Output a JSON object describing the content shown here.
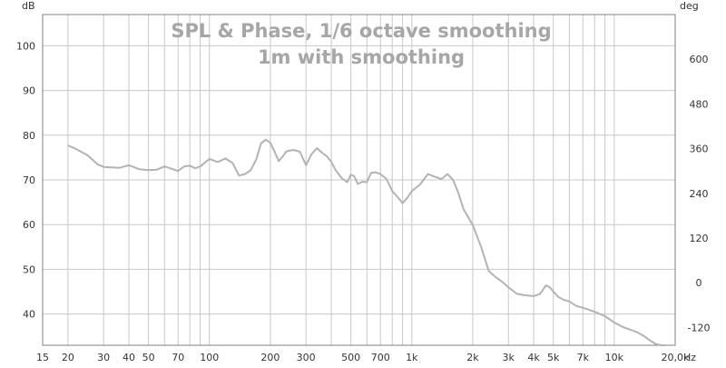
{
  "chart_data": {
    "type": "line",
    "title_line1": "SPL & Phase, 1/6 octave smoothing",
    "title_line2": "1m with smoothing",
    "left_axis_unit": "dB",
    "right_axis_unit": "deg",
    "x_axis_unit": "Hz",
    "x_scale": "log",
    "xlim": [
      15,
      20000
    ],
    "ylim_left": [
      33,
      107
    ],
    "ylim_right": [
      -168,
      720
    ],
    "grid": true,
    "x_ticks": [
      {
        "value": 15,
        "label": "15"
      },
      {
        "value": 20,
        "label": "20"
      },
      {
        "value": 30,
        "label": "30"
      },
      {
        "value": 40,
        "label": "40"
      },
      {
        "value": 50,
        "label": "50"
      },
      {
        "value": 70,
        "label": "70"
      },
      {
        "value": 100,
        "label": "100"
      },
      {
        "value": 200,
        "label": "200"
      },
      {
        "value": 300,
        "label": "300"
      },
      {
        "value": 500,
        "label": "500"
      },
      {
        "value": 700,
        "label": "700"
      },
      {
        "value": 1000,
        "label": "1k"
      },
      {
        "value": 2000,
        "label": "2k"
      },
      {
        "value": 3000,
        "label": "3k"
      },
      {
        "value": 4000,
        "label": "4k"
      },
      {
        "value": 5000,
        "label": "5k"
      },
      {
        "value": 7000,
        "label": "7k"
      },
      {
        "value": 10000,
        "label": "10k"
      },
      {
        "value": 20000,
        "label": "20,0k"
      }
    ],
    "y_ticks_left": [
      40,
      50,
      60,
      70,
      80,
      90,
      100
    ],
    "y_ticks_right": [
      -120,
      0,
      120,
      240,
      360,
      480,
      600
    ],
    "series": [
      {
        "color": "#b3b3b3",
        "x": [
          20,
          22,
          25,
          28,
          30,
          33,
          36,
          40,
          45,
          50,
          55,
          60,
          65,
          70,
          75,
          80,
          85,
          90,
          100,
          110,
          120,
          130,
          140,
          150,
          160,
          170,
          180,
          190,
          200,
          210,
          220,
          230,
          240,
          260,
          280,
          300,
          320,
          340,
          360,
          380,
          400,
          420,
          450,
          480,
          500,
          520,
          540,
          570,
          600,
          630,
          660,
          700,
          750,
          800,
          850,
          900,
          950,
          1000,
          1100,
          1200,
          1300,
          1400,
          1500,
          1600,
          1700,
          1800,
          2000,
          2200,
          2400,
          2600,
          2800,
          3000,
          3300,
          3600,
          4000,
          4300,
          4600,
          4800,
          5000,
          5300,
          5600,
          6000,
          6500,
          7000,
          8000,
          9000,
          10000,
          11000,
          12000,
          13000,
          14000,
          15000,
          16000,
          17000,
          18000
        ],
        "values": [
          77.7,
          76.9,
          75.5,
          73.5,
          72.9,
          72.8,
          72.7,
          73.3,
          72.4,
          72.2,
          72.3,
          73.0,
          72.5,
          72.0,
          73.0,
          73.2,
          72.6,
          73.0,
          74.7,
          74.0,
          74.8,
          73.8,
          71.0,
          71.3,
          72.2,
          74.5,
          78.2,
          79.0,
          78.3,
          76.3,
          74.2,
          75.2,
          76.4,
          76.7,
          76.3,
          73.3,
          75.8,
          77.1,
          76.1,
          75.3,
          74.0,
          72.2,
          70.4,
          69.5,
          71.2,
          70.8,
          69.1,
          69.6,
          69.5,
          71.6,
          71.7,
          71.3,
          70.2,
          67.5,
          66.2,
          64.8,
          66.0,
          67.5,
          69.0,
          71.3,
          70.7,
          70.2,
          71.3,
          70.0,
          67.0,
          63.5,
          59.9,
          55.0,
          49.6,
          48.2,
          47.2,
          46.0,
          44.5,
          44.2,
          44.0,
          44.5,
          46.4,
          46.0,
          45.0,
          43.8,
          43.2,
          42.8,
          41.8,
          41.4,
          40.5,
          39.5,
          38.1,
          37.1,
          36.5,
          35.9,
          35.1,
          34.1,
          33.3,
          33.0,
          33.0
        ]
      }
    ]
  }
}
